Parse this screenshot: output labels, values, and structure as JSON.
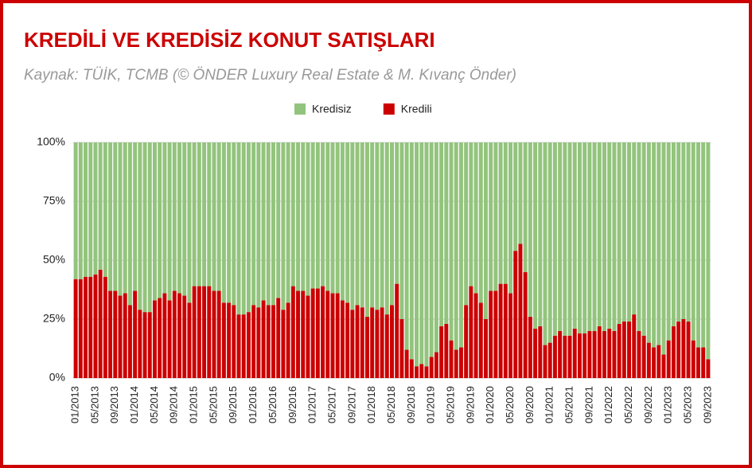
{
  "chart_data": {
    "type": "stacked_bar",
    "title": "KREDİLİ VE KREDİSİZ KONUT SATIŞLARI",
    "subtitle": "Kaynak: TÜİK, TCMB (© ÖNDER Luxury Real Estate & M. Kıvanç Önder)",
    "categories": [
      "01/2013",
      null,
      null,
      null,
      "05/2013",
      null,
      null,
      null,
      "09/2013",
      null,
      null,
      null,
      "01/2014",
      null,
      null,
      null,
      "05/2014",
      null,
      null,
      null,
      "09/2014",
      null,
      null,
      null,
      "01/2015",
      null,
      null,
      null,
      "05/2015",
      null,
      null,
      null,
      "09/2015",
      null,
      null,
      null,
      "01/2016",
      null,
      null,
      null,
      "05/2016",
      null,
      null,
      null,
      "09/2016",
      null,
      null,
      null,
      "01/2017",
      null,
      null,
      null,
      "05/2017",
      null,
      null,
      null,
      "09/2017",
      null,
      null,
      null,
      "01/2018",
      null,
      null,
      null,
      "05/2018",
      null,
      null,
      null,
      "09/2018",
      null,
      null,
      null,
      "01/2019",
      null,
      null,
      null,
      "05/2019",
      null,
      null,
      null,
      "09/2019",
      null,
      null,
      null,
      "01/2020",
      null,
      null,
      null,
      "05/2020",
      null,
      null,
      null,
      "09/2020",
      null,
      null,
      null,
      "01/2021",
      null,
      null,
      null,
      "05/2021",
      null,
      null,
      null,
      "09/2021",
      null,
      null,
      null,
      "01/2022",
      null,
      null,
      null,
      "05/2022",
      null,
      null,
      null,
      "09/2022",
      null,
      null,
      null,
      "01/2023",
      null,
      null,
      null,
      "05/2023",
      null,
      null,
      null,
      "09/2023"
    ],
    "series": [
      {
        "name": "Kredisiz",
        "color": "#93c47d",
        "values": [
          58,
          58,
          57,
          57,
          56,
          54,
          57,
          63,
          63,
          65,
          64,
          69,
          63,
          71,
          72,
          72,
          67,
          66,
          64,
          67,
          63,
          64,
          65,
          68,
          61,
          61,
          61,
          61,
          63,
          63,
          68,
          68,
          69,
          73,
          73,
          72,
          69,
          70,
          67,
          69,
          69,
          66,
          71,
          68,
          61,
          63,
          63,
          65,
          62,
          62,
          61,
          63,
          64,
          64,
          67,
          68,
          71,
          69,
          70,
          74,
          70,
          71,
          70,
          73,
          69,
          60,
          75,
          88,
          92,
          95,
          94,
          95,
          91,
          89,
          78,
          77,
          84,
          88,
          87,
          69,
          61,
          64,
          68,
          75,
          63,
          63,
          60,
          60,
          64,
          46,
          43,
          55,
          74,
          79,
          78,
          86,
          85,
          82,
          80,
          82,
          82,
          79,
          81,
          81,
          80,
          80,
          78,
          80,
          79,
          80,
          77,
          76,
          76,
          73,
          80,
          82,
          85,
          87,
          86,
          90,
          84,
          78,
          76,
          75,
          76,
          84,
          87,
          87,
          92
        ]
      },
      {
        "name": "Kredili",
        "color": "#cc0000",
        "values": [
          42,
          42,
          43,
          43,
          44,
          46,
          43,
          37,
          37,
          35,
          36,
          31,
          37,
          29,
          28,
          28,
          33,
          34,
          36,
          33,
          37,
          36,
          35,
          32,
          39,
          39,
          39,
          39,
          37,
          37,
          32,
          32,
          31,
          27,
          27,
          28,
          31,
          30,
          33,
          31,
          31,
          34,
          29,
          32,
          39,
          37,
          37,
          35,
          38,
          38,
          39,
          37,
          36,
          36,
          33,
          32,
          29,
          31,
          30,
          26,
          30,
          29,
          30,
          27,
          31,
          40,
          25,
          12,
          8,
          5,
          6,
          5,
          9,
          11,
          22,
          23,
          16,
          12,
          13,
          31,
          39,
          36,
          32,
          25,
          37,
          37,
          40,
          40,
          36,
          54,
          57,
          45,
          26,
          21,
          22,
          14,
          15,
          18,
          20,
          18,
          18,
          21,
          19,
          19,
          20,
          20,
          22,
          20,
          21,
          20,
          23,
          24,
          24,
          27,
          20,
          18,
          15,
          13,
          14,
          10,
          16,
          22,
          24,
          25,
          24,
          16,
          13,
          13,
          8
        ]
      }
    ],
    "ylim": [
      0,
      100
    ],
    "yticks": [
      {
        "value": 0,
        "label": "0%"
      },
      {
        "value": 25,
        "label": "25%"
      },
      {
        "value": 50,
        "label": "50%"
      },
      {
        "value": 75,
        "label": "75%"
      },
      {
        "value": 100,
        "label": "100%"
      }
    ],
    "grid": true,
    "legend": "top"
  }
}
